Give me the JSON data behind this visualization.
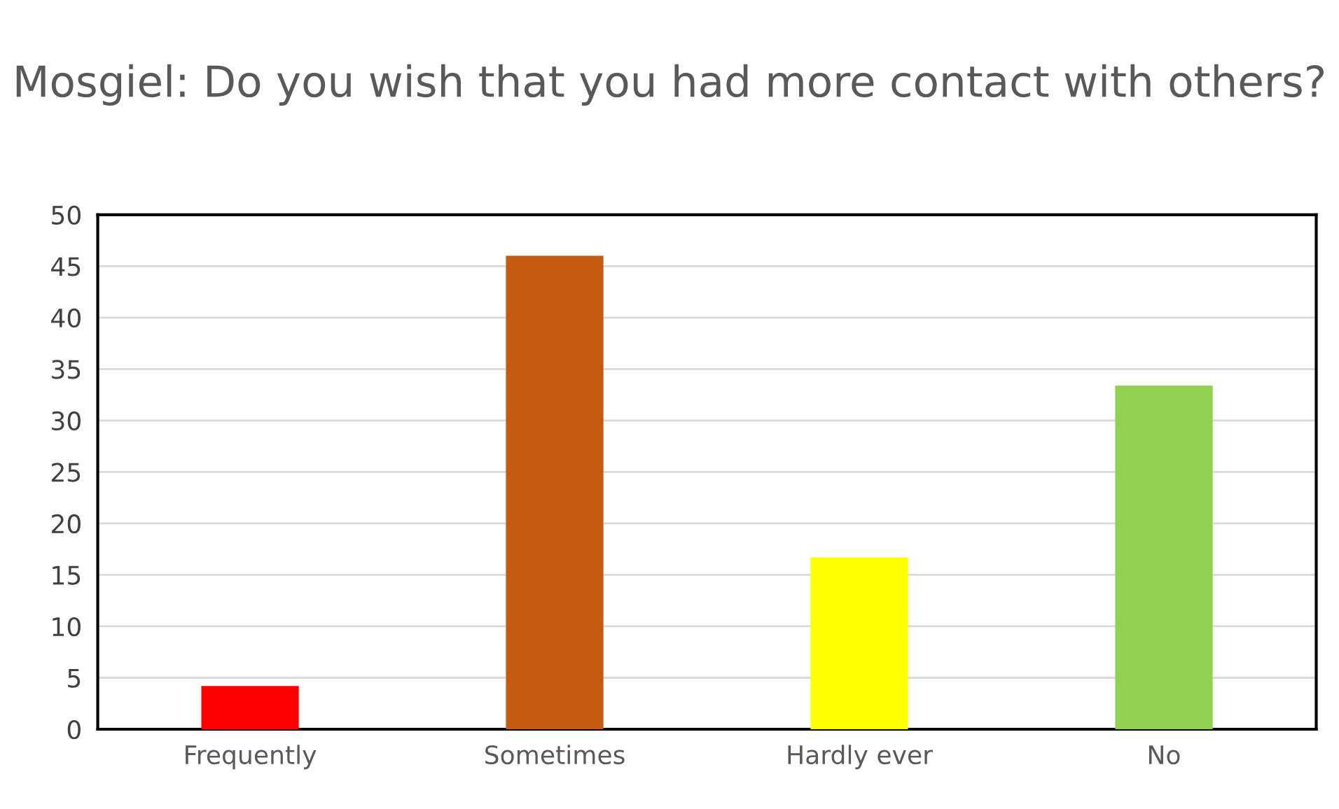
{
  "chart_data": {
    "type": "bar",
    "title": "Mosgiel: Do you wish that you had more contact with others?",
    "categories": [
      "Frequently",
      "Sometimes",
      "Hardly ever",
      "No"
    ],
    "values": [
      4.2,
      46,
      16.7,
      33.4
    ],
    "colors": [
      "#ff0000",
      "#c55a11",
      "#ffff00",
      "#92d050"
    ],
    "ylim": [
      0,
      50
    ],
    "yticks": [
      0,
      5,
      10,
      15,
      20,
      25,
      30,
      35,
      40,
      45,
      50
    ],
    "grid": "y",
    "legend": false
  }
}
